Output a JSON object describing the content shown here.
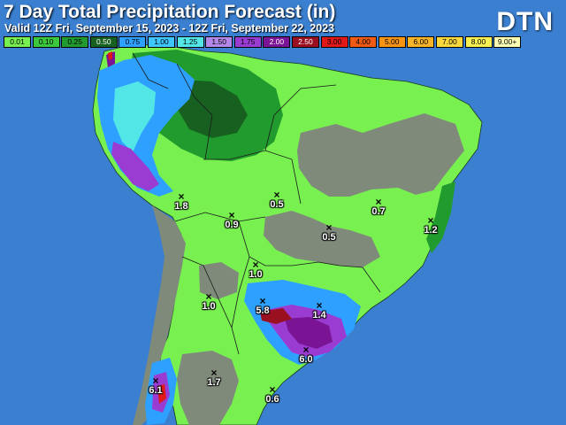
{
  "header": {
    "title": "7 Day Total Precipitation Forecast (in)",
    "valid": "Valid 12Z Fri, September 15, 2023 - 12Z Fri, September 22, 2023",
    "logo": "DTN"
  },
  "legend": [
    {
      "label": "0.01",
      "color": "#78f050"
    },
    {
      "label": "0.10",
      "color": "#3cc83c"
    },
    {
      "label": "0.25",
      "color": "#229b2e"
    },
    {
      "label": "0.50",
      "color": "#17601f"
    },
    {
      "label": "0.75",
      "color": "#2ea0ff"
    },
    {
      "label": "1.00",
      "color": "#3ec6ff"
    },
    {
      "label": "1.25",
      "color": "#52e6e6"
    },
    {
      "label": "1.50",
      "color": "#b488e8"
    },
    {
      "label": "1.75",
      "color": "#9a3cd2"
    },
    {
      "label": "2.00",
      "color": "#7a1494"
    },
    {
      "label": "2.50",
      "color": "#9a1020"
    },
    {
      "label": "3.00",
      "color": "#e01818"
    },
    {
      "label": "4.00",
      "color": "#f05a14"
    },
    {
      "label": "5.00",
      "color": "#f89414"
    },
    {
      "label": "6.00",
      "color": "#f8b428"
    },
    {
      "label": "7.00",
      "color": "#f8d83c"
    },
    {
      "label": "8.00",
      "color": "#f8f050"
    },
    {
      "label": "9.00+",
      "color": "#ffffb4"
    }
  ],
  "stations": [
    {
      "value": "1.8"
    },
    {
      "value": "0.5"
    },
    {
      "value": "0.7"
    },
    {
      "value": "0.9"
    },
    {
      "value": "0.5"
    },
    {
      "value": "1.2"
    },
    {
      "value": "1.0"
    },
    {
      "value": "1.0"
    },
    {
      "value": "5.8"
    },
    {
      "value": "1.4"
    },
    {
      "value": "6.0"
    },
    {
      "value": "1.7"
    },
    {
      "value": "6.1"
    },
    {
      "value": "0.6"
    }
  ]
}
